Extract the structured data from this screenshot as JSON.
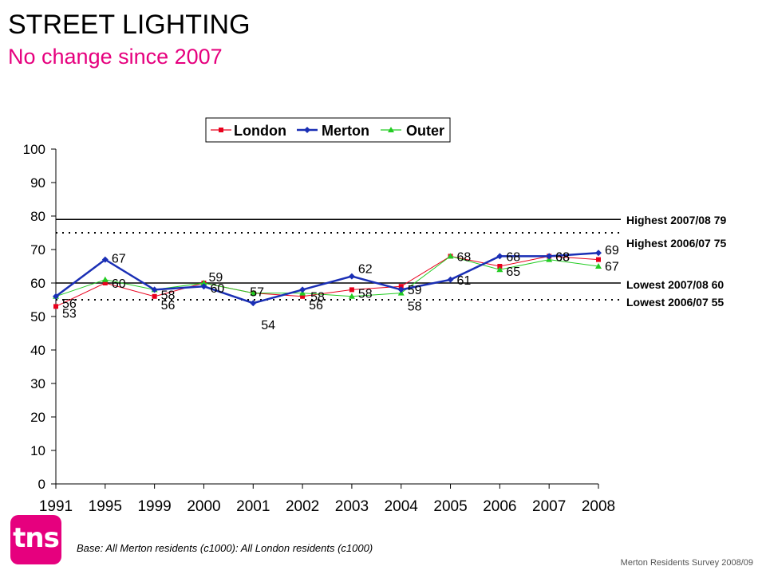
{
  "header": {
    "title": "STREET LIGHTING",
    "subtitle": "No change since 2007"
  },
  "reference_lines": {
    "highest_2007_08": {
      "label": "Highest 2007/08 79",
      "value": 79,
      "style": "solid"
    },
    "highest_2006_07": {
      "label": "Highest 2006/07 75",
      "value": 75,
      "style": "dotted"
    },
    "lowest_2007_08": {
      "label": "Lowest 2007/08 60",
      "value": 60,
      "style": "solid"
    },
    "lowest_2006_07": {
      "label": "Lowest 2006/07 55",
      "value": 55,
      "style": "dotted"
    }
  },
  "footer": {
    "base_note_bold": "Base: All Merton residents (c1000)",
    "base_note_rest": ": All London residents (c1000)",
    "survey": "Merton Residents Survey 2008/09",
    "logo_text": "tns"
  },
  "colors": {
    "london": "#e8001c",
    "merton": "#1a2fb5",
    "outer": "#22cc22",
    "brand": "#e6007e"
  },
  "chart_data": {
    "type": "line",
    "categories": [
      "1991",
      "1995",
      "1999",
      "2000",
      "2001",
      "2002",
      "2003",
      "2004",
      "2005",
      "2006",
      "2007",
      "2008"
    ],
    "ylim": [
      0,
      100
    ],
    "yticks": [
      0,
      10,
      20,
      30,
      40,
      50,
      60,
      70,
      80,
      90,
      100
    ],
    "legend_position": "top-center",
    "grid": false,
    "series": [
      {
        "name": "London",
        "values": [
          53,
          60,
          56,
          60,
          57,
          56,
          58,
          59,
          68,
          65,
          68,
          67
        ],
        "labels": [
          "53",
          "60",
          "56",
          "60",
          "57",
          "56",
          "58",
          "59",
          "68",
          "65",
          "68",
          "67"
        ]
      },
      {
        "name": "Merton",
        "values": [
          56,
          67,
          58,
          59,
          54,
          58,
          62,
          58,
          61,
          68,
          68,
          69
        ],
        "labels": [
          "56",
          "67",
          "58",
          "59",
          "54",
          "58",
          "62",
          "58",
          "61",
          "68",
          "68",
          "69"
        ]
      },
      {
        "name": "Outer",
        "values": [
          56,
          61,
          58,
          60,
          57,
          57,
          56,
          57,
          68,
          64,
          67,
          65
        ],
        "labels": []
      }
    ]
  }
}
